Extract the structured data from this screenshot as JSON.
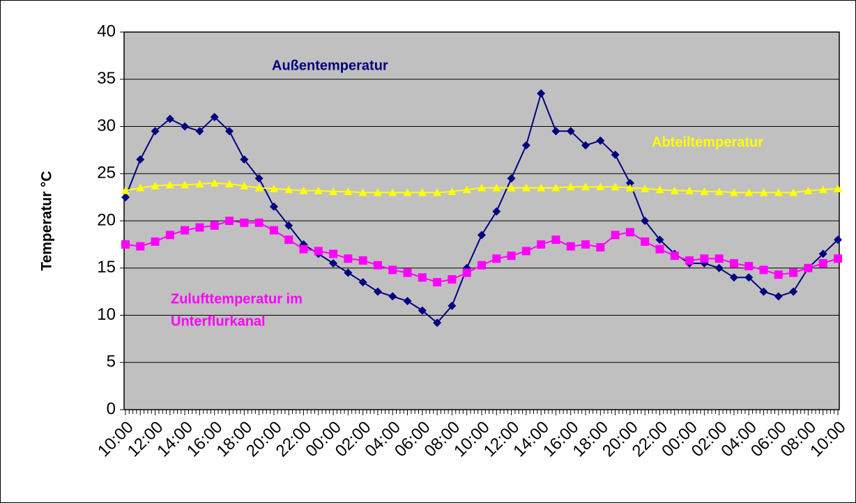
{
  "chart_data": {
    "type": "line",
    "y_label": "Temperatur °C",
    "categories": [
      "10:00",
      null,
      "12:00",
      null,
      "14:00",
      null,
      "16:00",
      null,
      "18:00",
      null,
      "20:00",
      null,
      "22:00",
      null,
      "00:00",
      null,
      "02:00",
      null,
      "04:00",
      null,
      "06:00",
      null,
      "08:00",
      null,
      "10:00",
      null,
      "12:00",
      null,
      "14:00",
      null,
      "16:00",
      null,
      "18:00",
      null,
      "20:00",
      null,
      "22:00",
      null,
      "00:00",
      null,
      "02:00",
      null,
      "04:00",
      null,
      "06:00",
      null,
      "08:00",
      null,
      "10:00"
    ],
    "series": [
      {
        "name": "Außentemperatur",
        "color": "#000080",
        "marker": "diamond",
        "values": [
          22.5,
          26.5,
          29.5,
          30.8,
          30,
          29.5,
          31,
          29.5,
          26.5,
          24.5,
          21.5,
          19.5,
          17.5,
          16.5,
          15.5,
          14.5,
          13.5,
          12.5,
          12,
          11.5,
          10.5,
          9.2,
          11,
          15,
          18.5,
          21,
          24.5,
          28,
          33.5,
          29.5,
          29.5,
          28,
          28.5,
          27,
          24,
          20,
          18,
          16.5,
          15.5,
          15.5,
          15,
          14,
          14,
          12.5,
          12,
          12.5,
          15,
          16.5,
          18
        ]
      },
      {
        "name": "Abteiltemperatur",
        "color": "#ffff00",
        "marker": "triangle",
        "values": [
          23.2,
          23.5,
          23.7,
          23.8,
          23.8,
          23.9,
          24,
          23.9,
          23.7,
          23.5,
          23.4,
          23.3,
          23.2,
          23.2,
          23.1,
          23.1,
          23,
          23,
          23,
          23,
          23,
          23,
          23.1,
          23.3,
          23.5,
          23.5,
          23.5,
          23.5,
          23.5,
          23.5,
          23.6,
          23.6,
          23.6,
          23.6,
          23.5,
          23.4,
          23.3,
          23.2,
          23.2,
          23.1,
          23.1,
          23,
          23,
          23,
          23,
          23,
          23.2,
          23.3,
          23.4
        ]
      },
      {
        "name": "Zulufttemperatur im Unterflurkanal",
        "color": "#ff00ff",
        "marker": "square",
        "values": [
          17.5,
          17.3,
          17.8,
          18.5,
          19,
          19.3,
          19.5,
          20,
          19.8,
          19.8,
          19,
          18,
          17,
          16.8,
          16.5,
          16,
          15.8,
          15.3,
          14.8,
          14.5,
          14,
          13.5,
          13.8,
          14.5,
          15.3,
          16,
          16.3,
          16.8,
          17.5,
          18,
          17.3,
          17.5,
          17.2,
          18.5,
          18.8,
          17.8,
          17,
          16.3,
          15.8,
          16,
          16,
          15.5,
          15.2,
          14.8,
          14.3,
          14.5,
          15,
          15.5,
          16
        ]
      }
    ],
    "annotations": [
      {
        "text": "Außentemperatur",
        "color": "#000080"
      },
      {
        "text": "Abteiltemperatur",
        "color": "#ffff00"
      },
      {
        "text": "Zulufttemperatur im",
        "color": "#ff00ff"
      },
      {
        "text": "Unterflurkanal",
        "color": "#ff00ff"
      }
    ],
    "ylim": [
      0,
      40
    ],
    "yticks": [
      0,
      5,
      10,
      15,
      20,
      25,
      30,
      35,
      40
    ],
    "grid": true,
    "plot_background": "#c0c0c0"
  }
}
